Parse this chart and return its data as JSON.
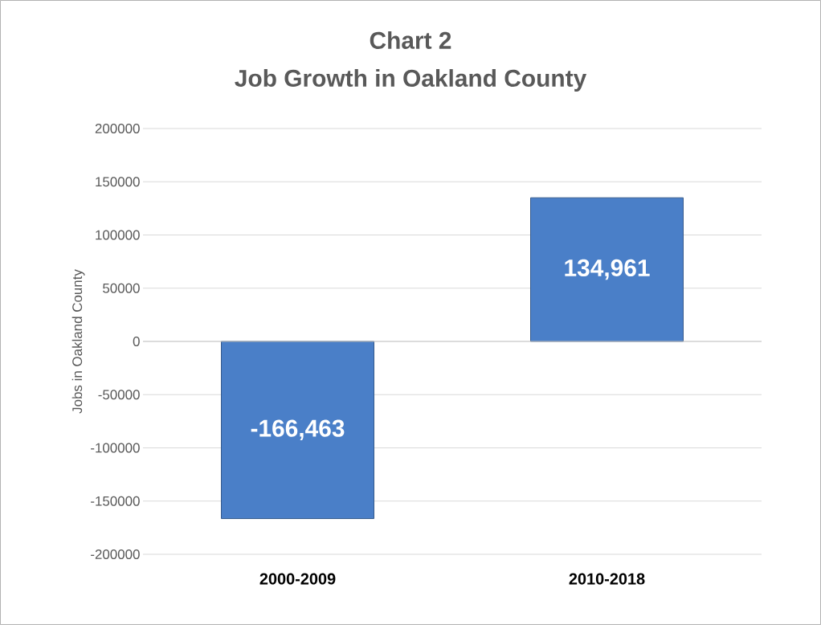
{
  "chart_data": {
    "type": "bar",
    "title": "Chart 2",
    "subtitle": "Job Growth in Oakland County",
    "ylabel": "Jobs in Oakland County",
    "categories": [
      "2000-2009",
      "2010-2018"
    ],
    "values": [
      -166463,
      134961
    ],
    "value_labels": [
      "-166,463",
      "134,961"
    ],
    "color": "#4a7fc8",
    "ylim": [
      -200000,
      200000
    ],
    "yticks": [
      -200000,
      -150000,
      -100000,
      -50000,
      0,
      50000,
      100000,
      150000,
      200000
    ],
    "grid": "y"
  }
}
